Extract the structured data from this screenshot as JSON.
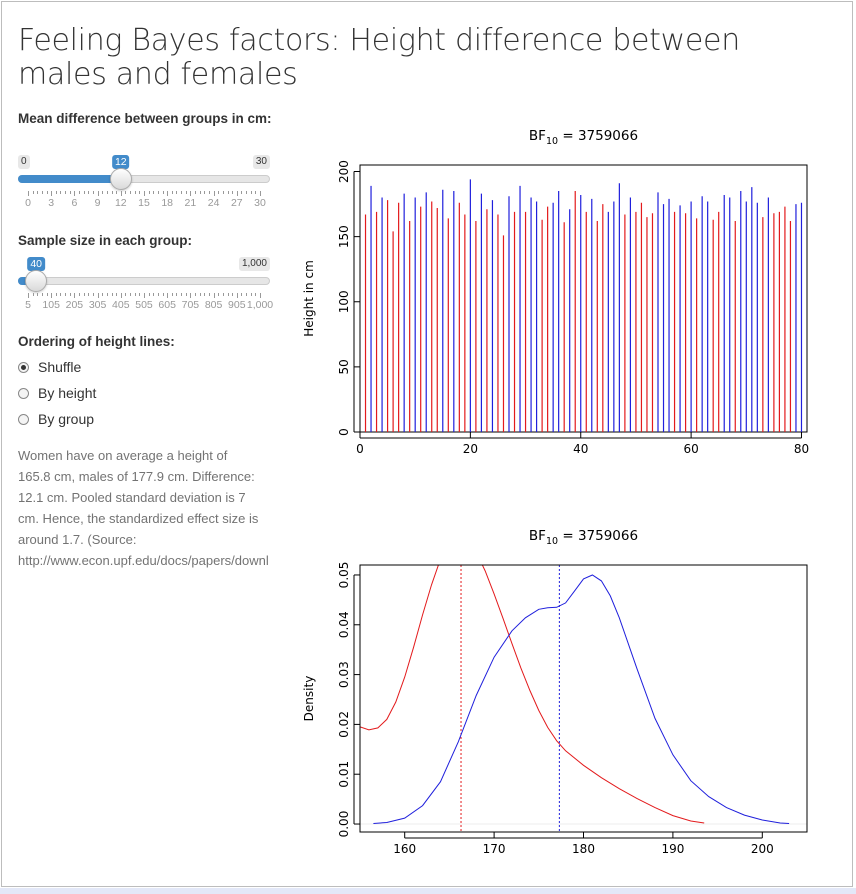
{
  "page": {
    "title": "Feeling Bayes factors: Height difference between males and females"
  },
  "controls": {
    "mean_diff": {
      "label": "Mean difference between groups in cm:",
      "min_label": "0",
      "max_label": "30",
      "value_label": "12",
      "min": 0,
      "max": 30,
      "value": 12,
      "ticks": [
        "0",
        "3",
        "6",
        "9",
        "12",
        "15",
        "18",
        "21",
        "24",
        "27",
        "30"
      ]
    },
    "sample_size": {
      "label": "Sample size in each group:",
      "min_label": "5",
      "max_label": "1,000",
      "value_label": "40",
      "min": 5,
      "max": 1000,
      "value": 40,
      "ticks": [
        "5",
        "105",
        "205",
        "305",
        "405",
        "505",
        "605",
        "705",
        "805",
        "905",
        "1,000"
      ]
    },
    "ordering": {
      "label": "Ordering of height lines:",
      "options": [
        "Shuffle",
        "By height",
        "By group"
      ],
      "selected": 0
    }
  },
  "help_lines": [
    "Women have on average a height of",
    "165.8 cm, males of 177.9 cm. Difference:",
    "12.1 cm. Pooled standard deviation is 7",
    "cm. Hence, the standardized effect size is",
    "around 1.7. (Source:",
    "http://www.econ.upf.edu/docs/papers/downl"
  ],
  "colors": {
    "female": "#e31a1c",
    "male": "#1f1fdc",
    "accent": "#428bca"
  },
  "chart_data": [
    {
      "type": "bar",
      "title_base": "BF",
      "title_sub": "10",
      "title_value": "=   3759066",
      "ylabel": "Height in cm",
      "xlabel": "",
      "xlim": [
        0,
        81
      ],
      "ylim": [
        0,
        205
      ],
      "xticks": [
        0,
        20,
        40,
        60,
        80
      ],
      "yticks": [
        0,
        50,
        100,
        150,
        200
      ],
      "x": [
        1,
        2,
        3,
        4,
        5,
        6,
        7,
        8,
        9,
        10,
        11,
        12,
        13,
        14,
        15,
        16,
        17,
        18,
        19,
        20,
        21,
        22,
        23,
        24,
        25,
        26,
        27,
        28,
        29,
        30,
        31,
        32,
        33,
        34,
        35,
        36,
        37,
        38,
        39,
        40,
        41,
        42,
        43,
        44,
        45,
        46,
        47,
        48,
        49,
        50,
        51,
        52,
        53,
        54,
        55,
        56,
        57,
        58,
        59,
        60,
        61,
        62,
        63,
        64,
        65,
        66,
        67,
        68,
        69,
        70,
        71,
        72,
        73,
        74,
        75,
        76,
        77,
        78,
        79,
        80
      ],
      "values": [
        167,
        189,
        169,
        180,
        178,
        154,
        176,
        183,
        162,
        180,
        173,
        184,
        177,
        172,
        186,
        164,
        185,
        176,
        167,
        194,
        162,
        183,
        171,
        178,
        167,
        151,
        181,
        169,
        189,
        169,
        180,
        177,
        163,
        173,
        176,
        185,
        161,
        171,
        185,
        182,
        169,
        179,
        162,
        175,
        169,
        177,
        191,
        167,
        180,
        169,
        176,
        165,
        168,
        184,
        175,
        179,
        169,
        174,
        168,
        177,
        164,
        181,
        177,
        163,
        169,
        182,
        180,
        162,
        185,
        177,
        188,
        176,
        165,
        180,
        168,
        169,
        173,
        162,
        175,
        176
      ],
      "groups": [
        "f",
        "m",
        "f",
        "m",
        "f",
        "f",
        "f",
        "m",
        "f",
        "m",
        "f",
        "m",
        "f",
        "f",
        "m",
        "f",
        "m",
        "f",
        "f",
        "m",
        "f",
        "m",
        "f",
        "m",
        "f",
        "f",
        "m",
        "f",
        "m",
        "f",
        "m",
        "m",
        "f",
        "f",
        "m",
        "m",
        "f",
        "m",
        "f",
        "m",
        "f",
        "m",
        "f",
        "f",
        "m",
        "m",
        "m",
        "f",
        "m",
        "f",
        "f",
        "f",
        "f",
        "m",
        "m",
        "m",
        "f",
        "m",
        "f",
        "m",
        "f",
        "m",
        "m",
        "f",
        "f",
        "m",
        "m",
        "f",
        "m",
        "m",
        "m",
        "m",
        "f",
        "m",
        "f",
        "f",
        "f",
        "f",
        "m",
        "m"
      ],
      "series": [
        {
          "name": "",
          "color_key": "female"
        },
        {
          "name": "",
          "color_key": "male"
        }
      ]
    },
    {
      "type": "line",
      "title_base": "BF",
      "title_sub": "10",
      "title_value": "=   3759066",
      "ylabel": "Density",
      "xlabel": "",
      "xlim": [
        155,
        205
      ],
      "ylim": [
        -0.0016,
        0.052
      ],
      "xticks": [
        160,
        170,
        180,
        190,
        200
      ],
      "yticks": [
        0.0,
        0.01,
        0.02,
        0.03,
        0.04,
        0.05
      ],
      "ytick_labels": [
        "0.00",
        "0.01",
        "0.02",
        "0.03",
        "0.04",
        "0.05"
      ],
      "series": [
        {
          "name": "",
          "color_key": "female",
          "mean": 166.3,
          "x": [
            155,
            156,
            157,
            158,
            159,
            160,
            161,
            162,
            163,
            164,
            165,
            166,
            167,
            168,
            169,
            170,
            171,
            172,
            173,
            174,
            175,
            176,
            177,
            178,
            180,
            182,
            184,
            186,
            188,
            190,
            192,
            193.5
          ],
          "y": [
            0.0195,
            0.0189,
            0.0193,
            0.021,
            0.0245,
            0.0295,
            0.0355,
            0.042,
            0.048,
            0.0532,
            0.0566,
            0.0579,
            0.0571,
            0.0546,
            0.0508,
            0.0462,
            0.0413,
            0.0362,
            0.0313,
            0.0268,
            0.0228,
            0.0194,
            0.0167,
            0.0147,
            0.0118,
            0.0093,
            0.0071,
            0.0051,
            0.0033,
            0.0017,
            0.0006,
            0.0002
          ]
        },
        {
          "name": "",
          "color_key": "male",
          "mean": 177.3,
          "x": [
            156.5,
            158,
            160,
            162,
            164,
            166,
            168,
            170,
            172,
            173.5,
            175,
            176,
            177,
            178,
            179,
            180,
            181,
            182,
            183,
            184,
            186,
            188,
            190,
            192,
            194,
            196,
            198,
            200,
            202,
            203
          ],
          "y": [
            0.0001,
            0.0003,
            0.0012,
            0.0037,
            0.0085,
            0.0165,
            0.0258,
            0.0335,
            0.0388,
            0.0414,
            0.0431,
            0.0434,
            0.0435,
            0.0444,
            0.0468,
            0.0492,
            0.05,
            0.0488,
            0.0458,
            0.0414,
            0.0311,
            0.0212,
            0.0139,
            0.0087,
            0.0055,
            0.0033,
            0.0018,
            0.0008,
            0.0002,
            0.0001
          ]
        }
      ]
    }
  ]
}
